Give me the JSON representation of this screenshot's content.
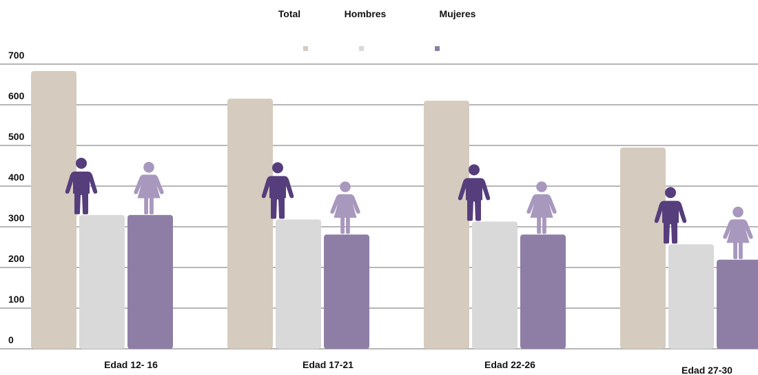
{
  "chart_data": {
    "type": "bar",
    "categories": [
      "Edad 12- 16",
      "Edad 17-21",
      "Edad 22-26",
      "Edad 27-30"
    ],
    "series": [
      {
        "name": "Total",
        "values": [
          683,
          615,
          610,
          495
        ],
        "color": "#d5cbbf"
      },
      {
        "name": "Hombres",
        "values": [
          329,
          318,
          313,
          257
        ],
        "color": "#d9d9d9"
      },
      {
        "name": "Mujeres",
        "values": [
          329,
          281,
          281,
          219
        ],
        "color": "#8e7ea5"
      }
    ],
    "yticks": [
      0,
      100,
      200,
      300,
      400,
      500,
      600,
      700
    ],
    "ylim": [
      0,
      700
    ],
    "grid": true,
    "legend_position": "top-center",
    "icons": {
      "men_icon": "man-icon",
      "women_icon": "woman-icon",
      "men_color": "#563d7c",
      "women_color": "#a898bd"
    }
  }
}
